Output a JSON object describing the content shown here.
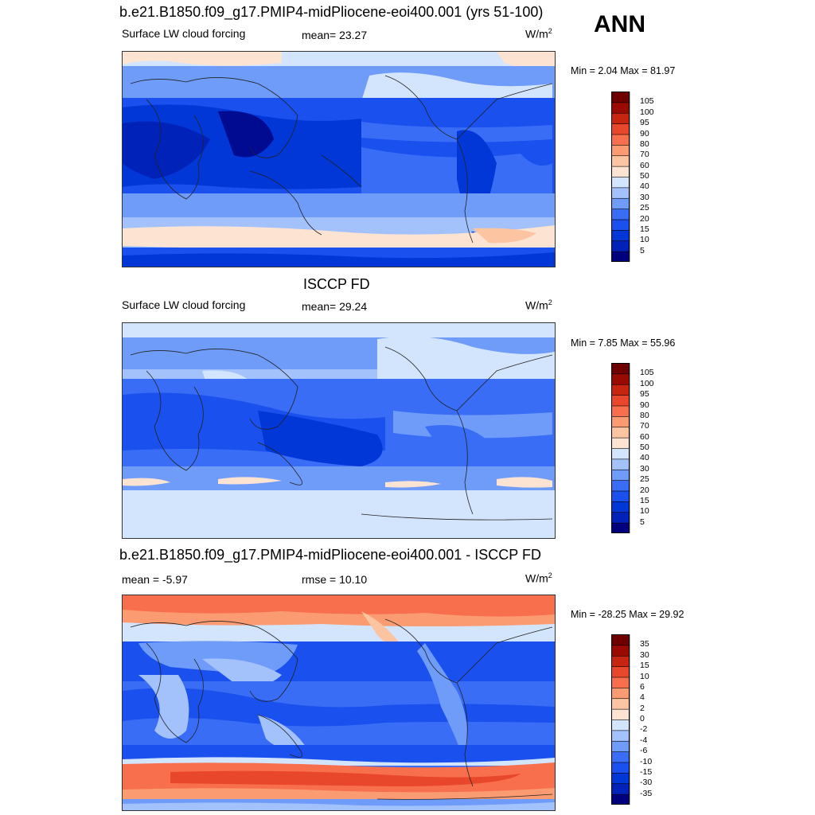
{
  "season": "ANN",
  "colors": {
    "abs_scale": [
      "#00007f",
      "#0022b8",
      "#0037d6",
      "#1a50ee",
      "#3a6df5",
      "#6f9bf9",
      "#a3c2fb",
      "#d3e4fd",
      "#fde3d2",
      "#fcc4a1",
      "#fb9b72",
      "#f76f4c",
      "#e8472b",
      "#c82511",
      "#9b0a00",
      "#6e0000"
    ],
    "diff_scale": [
      "#00007f",
      "#0022b8",
      "#0037d6",
      "#1a50ee",
      "#3a6df5",
      "#6f9bf9",
      "#a3c2fb",
      "#d3e4fd",
      "#fde3d2",
      "#fcc4a1",
      "#fb9b72",
      "#f76f4c",
      "#e8472b",
      "#c82511",
      "#9b0a00",
      "#6e0000"
    ]
  },
  "panels": [
    {
      "title": "b.e21.B1850.f09_g17.PMIP4-midPliocene-eoi400.001 (yrs 51-100)",
      "left_label": "Surface LW cloud forcing",
      "center_label": "mean=  23.27",
      "units": "W/m",
      "units_sup": "2",
      "minmax": "Min =   2.04 Max =  81.97"
    },
    {
      "title": "ISCCP FD",
      "left_label": "Surface LW cloud forcing",
      "center_label": "mean=  29.24",
      "units": "W/m",
      "units_sup": "2",
      "minmax": "Min =   7.85 Max =  55.96"
    },
    {
      "title": "b.e21.B1850.f09_g17.PMIP4-midPliocene-eoi400.001 - ISCCP FD",
      "left_label": "mean =  -5.97",
      "center_label": "rmse =  10.10",
      "units": "W/m",
      "units_sup": "2",
      "minmax": "Min = -28.25 Max =  29.92"
    }
  ],
  "chart_data": [
    {
      "type": "heatmap",
      "title": "b.e21.B1850.f09_g17.PMIP4-midPliocene-eoi400.001 (yrs 51-100)",
      "variable": "Surface LW cloud forcing",
      "mean": 23.27,
      "min": 2.04,
      "max": 81.97,
      "units": "W/m2",
      "colorbar_levels": [
        5,
        10,
        15,
        20,
        25,
        30,
        40,
        50,
        60,
        70,
        80,
        90,
        95,
        100,
        105
      ]
    },
    {
      "type": "heatmap",
      "title": "ISCCP FD",
      "variable": "Surface LW cloud forcing",
      "mean": 29.24,
      "min": 7.85,
      "max": 55.96,
      "units": "W/m2",
      "colorbar_levels": [
        5,
        10,
        15,
        20,
        25,
        30,
        40,
        50,
        60,
        70,
        80,
        90,
        95,
        100,
        105
      ]
    },
    {
      "type": "heatmap",
      "title": "b.e21.B1850.f09_g17.PMIP4-midPliocene-eoi400.001 - ISCCP FD",
      "mean": -5.97,
      "rmse": 10.1,
      "min": -28.25,
      "max": 29.92,
      "units": "W/m2",
      "colorbar_levels": [
        -35,
        -30,
        -15,
        -10,
        -6,
        -4,
        -2,
        0,
        2,
        4,
        6,
        10,
        15,
        30,
        35
      ]
    }
  ]
}
